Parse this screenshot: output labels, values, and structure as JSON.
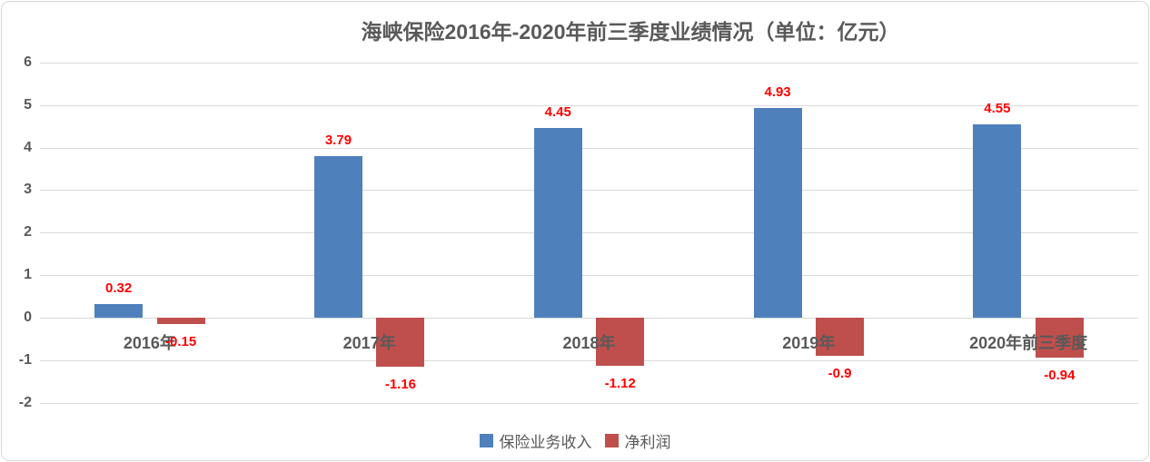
{
  "chart_data": {
    "type": "bar",
    "title": "海峡保险2016年-2020年前三季度业绩情况（单位：亿元）",
    "categories": [
      "2016年",
      "2017年",
      "2018年",
      "2019年",
      "2020年前三季度"
    ],
    "series": [
      {
        "name": "保险业务收入",
        "color": "#4e80bc",
        "values": [
          0.32,
          3.79,
          4.45,
          4.93,
          4.55
        ],
        "labels": [
          "0.32",
          "3.79",
          "4.45",
          "4.93",
          "4.55"
        ]
      },
      {
        "name": "净利润",
        "color": "#bf4f4c",
        "values": [
          -0.15,
          -1.16,
          -1.12,
          -0.9,
          -0.94
        ],
        "labels": [
          "-0.15",
          "-1.16",
          "-1.12",
          "-0.9",
          "-0.94"
        ]
      }
    ],
    "ylim": [
      -2,
      6
    ],
    "yticks": [
      "6",
      "5",
      "4",
      "3",
      "2",
      "1",
      "0",
      "-1",
      "-2"
    ],
    "grid": true,
    "legend_position": "bottom",
    "data_label_color": "#ff0000",
    "axis_text_color": "#595959",
    "gridline_color": "#d9d9d9"
  }
}
